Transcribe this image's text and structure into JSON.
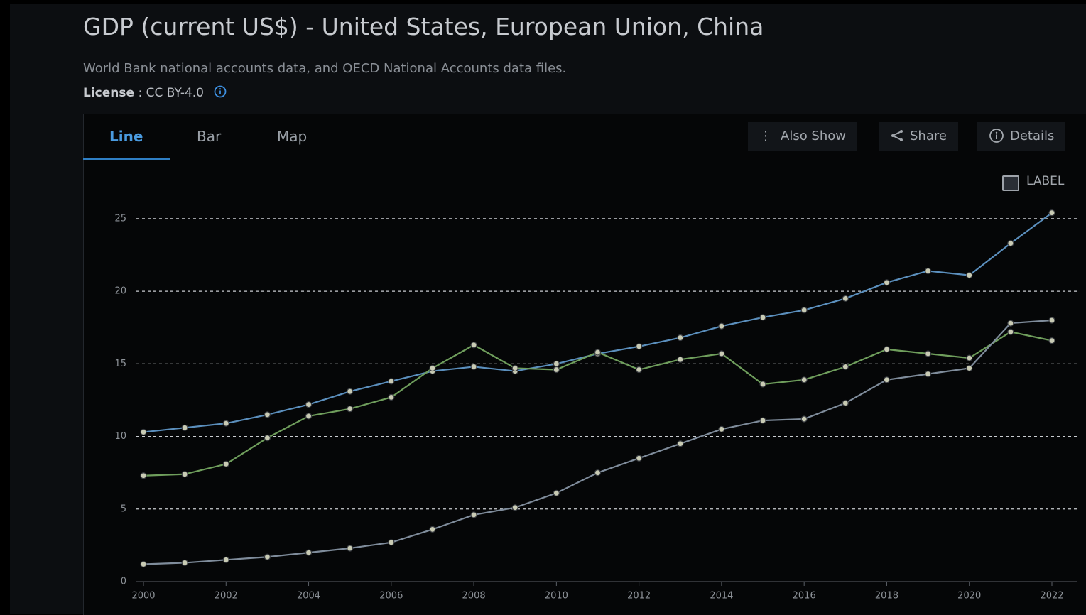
{
  "header": {
    "title": "GDP (current US$) - United States, European Union, China",
    "subtitle": "World Bank national accounts data, and OECD National Accounts data files.",
    "license_label": "License",
    "license_value": ": CC BY-4.0"
  },
  "tabs": [
    "Line",
    "Bar",
    "Map"
  ],
  "buttons": [
    "Also Show",
    "Share",
    "Details"
  ],
  "label_toggle": "LABEL",
  "chart_data": {
    "type": "line",
    "x": [
      2000,
      2001,
      2002,
      2003,
      2004,
      2005,
      2006,
      2007,
      2008,
      2009,
      2010,
      2011,
      2012,
      2013,
      2014,
      2015,
      2016,
      2017,
      2018,
      2019,
      2020,
      2021,
      2022
    ],
    "series": [
      {
        "color": "#5b8fbd",
        "values": [
          10.3,
          10.6,
          10.9,
          11.5,
          12.2,
          13.1,
          13.8,
          14.5,
          14.8,
          14.5,
          15.0,
          15.7,
          16.2,
          16.8,
          17.6,
          18.2,
          18.7,
          19.5,
          20.6,
          21.4,
          21.1,
          23.3,
          25.4
        ]
      },
      {
        "color": "#6f9e5c",
        "values": [
          7.3,
          7.4,
          8.1,
          9.9,
          11.4,
          11.9,
          12.7,
          14.7,
          16.3,
          14.7,
          14.6,
          15.8,
          14.6,
          15.3,
          15.7,
          13.6,
          13.9,
          14.8,
          16.0,
          15.7,
          15.4,
          17.2,
          16.6
        ]
      },
      {
        "color": "#7f8c9b",
        "values": [
          1.2,
          1.3,
          1.5,
          1.7,
          2.0,
          2.3,
          2.7,
          3.6,
          4.6,
          5.1,
          6.1,
          7.5,
          8.5,
          9.5,
          10.5,
          11.1,
          11.2,
          12.3,
          13.9,
          14.3,
          14.7,
          17.8,
          18.0
        ]
      }
    ],
    "xlim": [
      2000,
      2022
    ],
    "xticks": [
      2000,
      2002,
      2004,
      2006,
      2008,
      2010,
      2012,
      2014,
      2016,
      2018,
      2020,
      2022
    ],
    "ylim": [
      0,
      27
    ],
    "yticks": [
      0,
      5,
      10,
      15,
      20,
      25
    ],
    "grid": true
  }
}
